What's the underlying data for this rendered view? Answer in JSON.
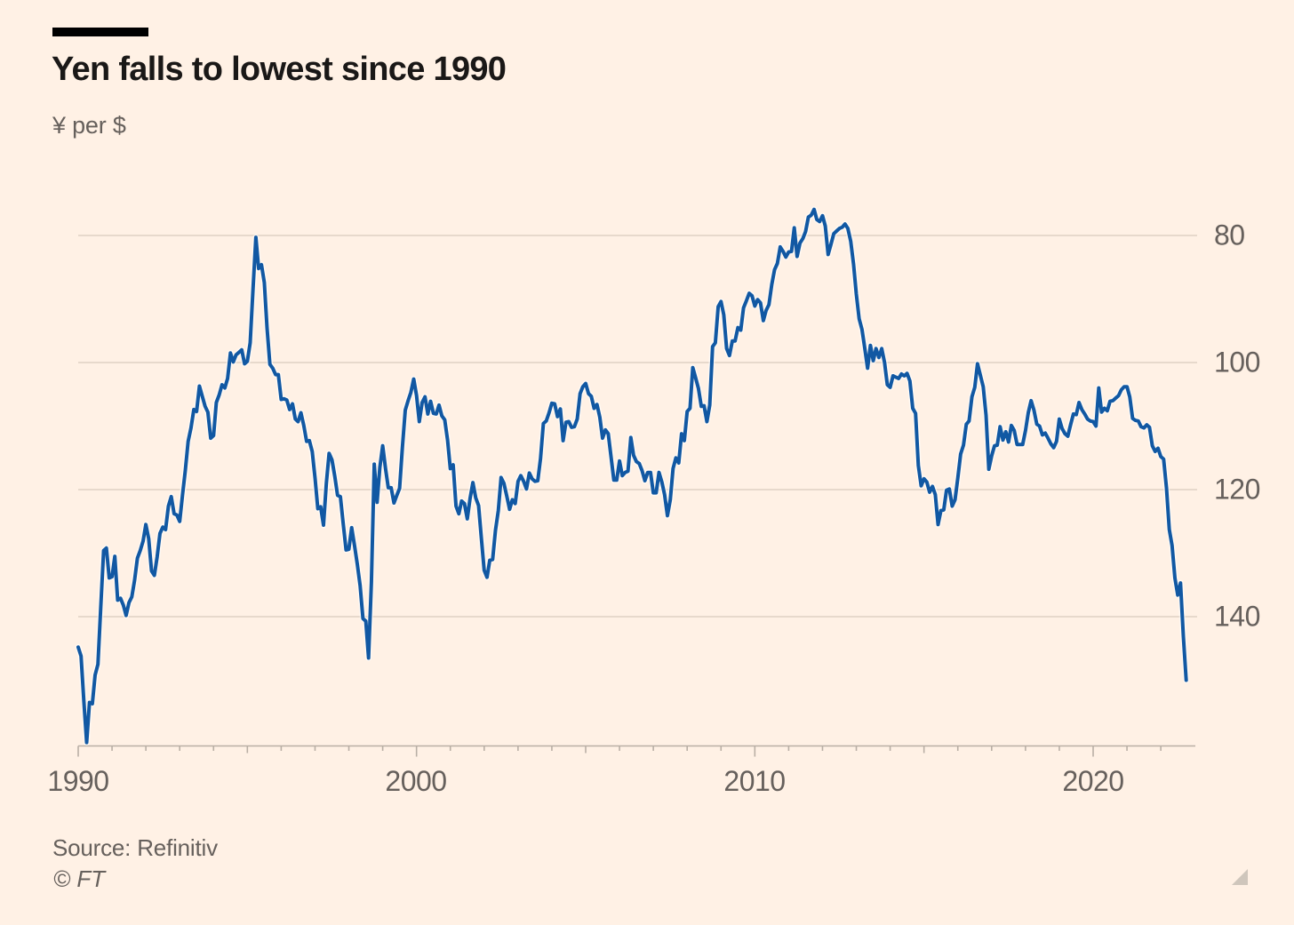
{
  "header": {
    "title": "Yen falls to lowest since 1990",
    "subtitle": "¥ per $"
  },
  "footer": {
    "source": "Source: Refinitiv",
    "copyright": "© FT"
  },
  "chart_data": {
    "type": "line",
    "title": "Yen falls to lowest since 1990",
    "xlabel": "",
    "ylabel": "¥ per $",
    "grid": "horizontal",
    "legend": "none",
    "y_axis": {
      "side": "right",
      "inverted": true,
      "ticks": [
        80,
        100,
        120,
        140
      ],
      "tick_labels": [
        "80",
        "100",
        "120",
        "140"
      ],
      "range_top_value": 68,
      "range_bottom_value": 160.5
    },
    "x_axis": {
      "range_years": [
        1990,
        2022.83
      ],
      "minor_tick_every_years": 1,
      "labeled_ticks": [
        1990,
        2000,
        2010,
        2020
      ],
      "tick_labels": [
        "1990",
        "2000",
        "2010",
        "2020"
      ]
    },
    "series": [
      {
        "name": "Yen per US dollar",
        "start_year": 1990,
        "interval_months": 1,
        "values": [
          144.8,
          146.2,
          153.2,
          159.8,
          153.5,
          153.7,
          149.2,
          147.5,
          138.4,
          129.6,
          129.2,
          133.9,
          133.7,
          130.5,
          137.4,
          137.1,
          138.2,
          139.8,
          137.8,
          136.9,
          134.3,
          130.8,
          129.6,
          128.1,
          125.5,
          127.7,
          132.8,
          133.5,
          130.6,
          126.9,
          125.9,
          126.3,
          122.6,
          121.1,
          123.8,
          124.0,
          125.0,
          120.8,
          117.0,
          112.4,
          110.3,
          107.4,
          107.7,
          103.7,
          105.3,
          106.9,
          107.8,
          111.9,
          111.5,
          106.3,
          105.1,
          103.5,
          104.0,
          102.5,
          98.5,
          99.9,
          98.8,
          98.4,
          98.0,
          100.2,
          99.8,
          96.9,
          88.4,
          80.3,
          85.2,
          84.6,
          87.4,
          94.6,
          100.3,
          100.9,
          101.9,
          101.9,
          105.8,
          105.7,
          105.9,
          107.4,
          106.5,
          108.9,
          109.3,
          107.9,
          109.9,
          112.4,
          112.3,
          114.0,
          118.2,
          123.0,
          122.7,
          125.6,
          119.0,
          114.3,
          115.3,
          117.9,
          120.9,
          121.1,
          125.4,
          129.5,
          129.4,
          126.0,
          128.8,
          131.8,
          135.1,
          140.3,
          140.7,
          146.5,
          134.6,
          116.0,
          122.0,
          116.5,
          113.1,
          116.7,
          119.7,
          119.7,
          122.1,
          120.9,
          119.8,
          113.3,
          107.5,
          106.0,
          104.7,
          102.6,
          105.2,
          109.3,
          106.3,
          105.4,
          108.1,
          106.1,
          108.0,
          108.1,
          106.7,
          108.4,
          109.0,
          112.2,
          116.7,
          116.1,
          122.6,
          123.8,
          121.8,
          122.2,
          124.6,
          121.4,
          118.9,
          121.3,
          122.5,
          127.6,
          132.7,
          133.8,
          131.1,
          131.0,
          126.4,
          123.3,
          118.1,
          119.0,
          121.0,
          123.1,
          121.6,
          122.2,
          118.7,
          117.8,
          118.7,
          119.9,
          117.4,
          118.3,
          118.7,
          118.6,
          115.1,
          109.6,
          109.2,
          107.9,
          106.4,
          106.5,
          108.5,
          107.3,
          112.3,
          109.4,
          109.3,
          110.2,
          110.1,
          108.9,
          104.9,
          103.8,
          103.3,
          104.9,
          105.3,
          107.2,
          106.6,
          108.6,
          111.9,
          110.6,
          111.2,
          114.9,
          118.5,
          118.5,
          115.5,
          117.8,
          117.3,
          117.1,
          111.8,
          114.6,
          115.6,
          115.9,
          117.0,
          118.6,
          117.3,
          117.3,
          120.5,
          120.5,
          117.3,
          118.8,
          120.8,
          124.1,
          121.6,
          116.7,
          115.0,
          115.8,
          111.2,
          112.3,
          107.7,
          107.2,
          100.8,
          102.4,
          104.1,
          106.9,
          106.8,
          109.3,
          106.7,
          97.5,
          96.9,
          91.2,
          90.4,
          92.5,
          97.8,
          98.9,
          96.6,
          96.6,
          94.5,
          94.9,
          91.4,
          90.3,
          89.1,
          89.5,
          91.1,
          90.1,
          90.6,
          93.4,
          91.8,
          90.9,
          87.7,
          85.4,
          84.4,
          81.8,
          82.5,
          83.4,
          82.6,
          82.5,
          78.8,
          83.3,
          81.2,
          80.5,
          79.4,
          77.1,
          76.8,
          75.9,
          77.5,
          77.8,
          76.9,
          78.5,
          83.0,
          81.4,
          79.7,
          79.3,
          78.9,
          78.7,
          78.2,
          78.9,
          80.9,
          84.5,
          89.2,
          93.1,
          94.8,
          97.8,
          100.9,
          97.3,
          99.7,
          97.8,
          99.2,
          97.8,
          100.0,
          103.5,
          103.9,
          102.1,
          102.3,
          102.5,
          101.8,
          102.1,
          101.7,
          102.9,
          107.2,
          108.0,
          116.2,
          119.4,
          118.3,
          118.8,
          120.4,
          119.5,
          120.8,
          125.5,
          123.3,
          123.2,
          120.1,
          119.9,
          122.6,
          121.6,
          118.2,
          114.4,
          113.0,
          109.7,
          109.2,
          105.4,
          103.9,
          100.2,
          102.0,
          103.8,
          108.3,
          116.8,
          114.7,
          113.1,
          113.0,
          110.1,
          112.2,
          110.9,
          112.5,
          109.9,
          110.7,
          112.9,
          112.9,
          112.9,
          110.7,
          107.9,
          106.0,
          107.5,
          109.7,
          110.0,
          111.4,
          111.1,
          111.9,
          112.8,
          113.4,
          112.4,
          108.9,
          110.4,
          111.2,
          111.6,
          109.8,
          108.1,
          108.2,
          106.3,
          107.4,
          108.1,
          108.9,
          109.2,
          109.3,
          110.0,
          104.0,
          107.8,
          107.2,
          107.6,
          106.1,
          106.0,
          105.6,
          105.2,
          104.3,
          103.8,
          103.8,
          105.4,
          108.8,
          109.1,
          109.2,
          110.1,
          110.3,
          109.8,
          110.2,
          113.1,
          114.0,
          113.5,
          114.8,
          115.2,
          119.7,
          126.3,
          128.8,
          133.9,
          136.6,
          134.7,
          143.1,
          150.0
        ]
      }
    ],
    "colors": {
      "line": "#1158a3",
      "line_halo": "rgba(255,255,255,0.55)",
      "background": "#fff1e5",
      "grid": "#e7d9cc",
      "axis": "#b9afa5",
      "text": "#66605c",
      "title_text": "#1a1817",
      "top_bar": "#000000",
      "corner_glyph": "#cfc6bc"
    }
  }
}
